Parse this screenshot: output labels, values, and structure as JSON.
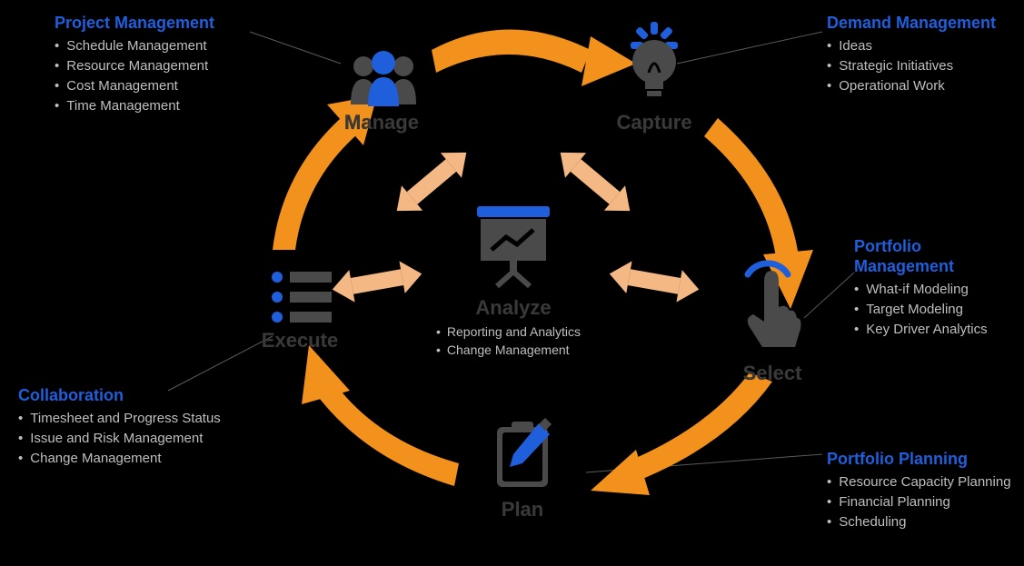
{
  "diagram": {
    "type": "infographic-cycle",
    "background_color": "#000000",
    "accent_color": "#1f5fdc",
    "arrow_color": "#f2911b",
    "inner_arrow_color": "#f4b884",
    "icon_gray": "#4a4a4a",
    "icon_blue": "#1f5fdc",
    "label_color": "#3a3a3a",
    "bullet_color": "#bfbfbf",
    "title_fontsize": 18,
    "bullet_fontsize": 15,
    "node_label_fontsize": 22,
    "center": {
      "label": "Analyze",
      "bullets": [
        "Reporting and Analytics",
        "Change Management"
      ]
    },
    "nodes": [
      {
        "id": "manage",
        "label": "Manage",
        "callout_title": "Project Management",
        "callout_items": [
          "Schedule Management",
          "Resource Management",
          "Cost Management",
          "Time Management"
        ]
      },
      {
        "id": "capture",
        "label": "Capture",
        "callout_title": "Demand Management",
        "callout_items": [
          "Ideas",
          "Strategic Initiatives",
          "Operational Work"
        ]
      },
      {
        "id": "select",
        "label": "Select",
        "callout_title": "Portfolio Management",
        "callout_items": [
          "What-if Modeling",
          "Target Modeling",
          "Key Driver Analytics"
        ]
      },
      {
        "id": "plan",
        "label": "Plan",
        "callout_title": "Portfolio Planning",
        "callout_items": [
          "Resource Capacity Planning",
          "Financial Planning",
          "Scheduling"
        ]
      },
      {
        "id": "execute",
        "label": "Execute",
        "callout_title": "Collaboration",
        "callout_items": [
          "Timesheet and Progress Status",
          "Issue and Risk Management",
          "Change Management"
        ]
      }
    ]
  }
}
